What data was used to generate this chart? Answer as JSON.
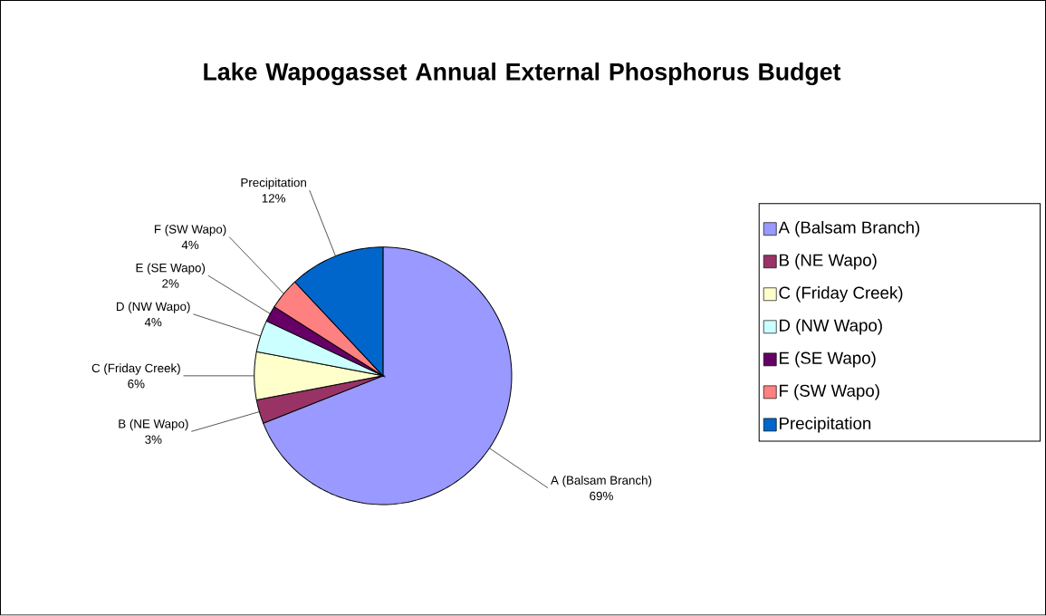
{
  "chart_data": {
    "type": "pie",
    "title": "Lake Wapogasset Annual External Phosphorus Budget",
    "categories": [
      "A (Balsam Branch)",
      "B (NE Wapo)",
      "C (Friday Creek)",
      "D (NW Wapo)",
      "E (SE Wapo)",
      "F (SW Wapo)",
      "Precipitation"
    ],
    "values": [
      69,
      3,
      6,
      4,
      2,
      4,
      12
    ],
    "value_labels": [
      "69%",
      "3%",
      "6%",
      "4%",
      "2%",
      "4%",
      "12%"
    ],
    "colors": [
      "#9999ff",
      "#993366",
      "#ffffcc",
      "#ccffff",
      "#660066",
      "#ff8080",
      "#0066cc"
    ],
    "legend": "right"
  }
}
